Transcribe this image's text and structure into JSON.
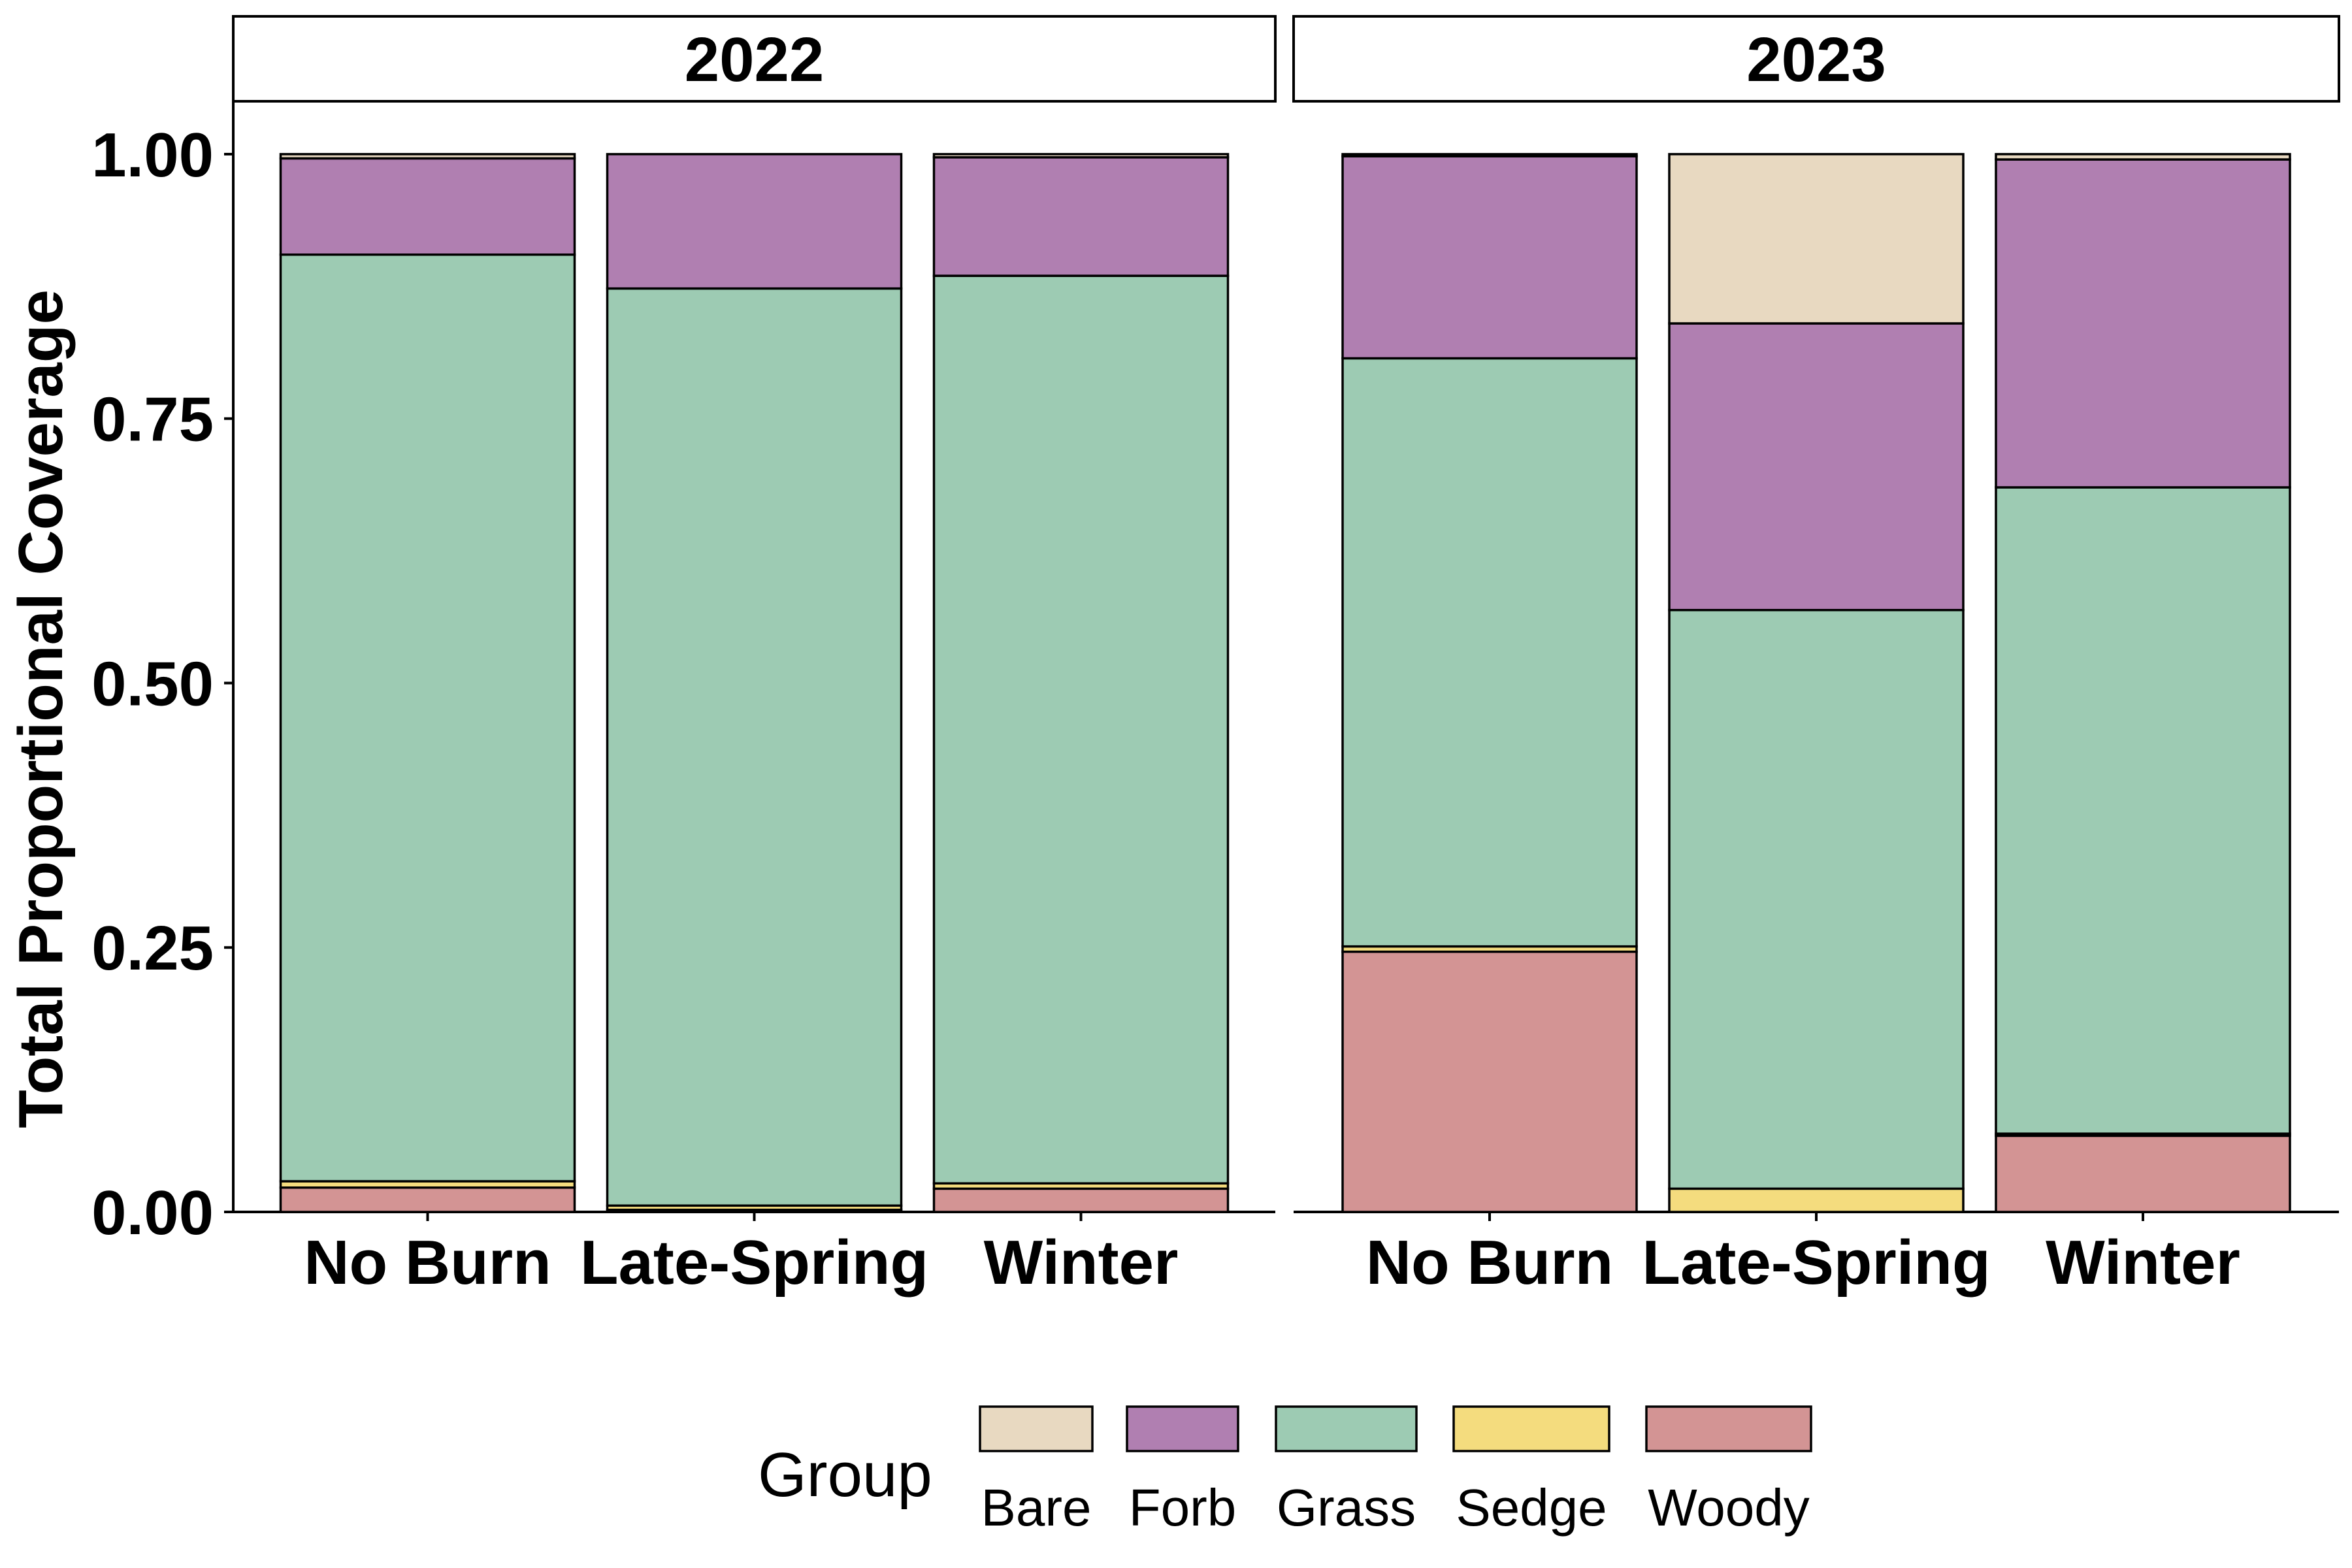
{
  "chart_data": {
    "type": "bar",
    "stacked": true,
    "ylabel": "Total Proportional Coverage",
    "xlabel": "",
    "ylim": [
      0,
      1.05
    ],
    "yticks": [
      "0.00",
      "0.25",
      "0.50",
      "0.75",
      "1.00"
    ],
    "ytick_values": [
      0,
      0.25,
      0.5,
      0.75,
      1.0
    ],
    "categories": [
      "No Burn",
      "Late-Spring",
      "Winter"
    ],
    "legend": {
      "title": "Group",
      "position": "bottom",
      "entries": [
        {
          "name": "Bare",
          "color": "#e8d9c1"
        },
        {
          "name": "Forb",
          "color": "#b07fb1"
        },
        {
          "name": "Grass",
          "color": "#9dcbb3"
        },
        {
          "name": "Sedge",
          "color": "#f4dc7e"
        },
        {
          "name": "Woody",
          "color": "#d39494"
        }
      ]
    },
    "stack_order_bottom_to_top": [
      "Woody",
      "Sedge",
      "Grass",
      "Forb",
      "Bare"
    ],
    "panels": [
      {
        "title": "2022",
        "bars": [
          {
            "category": "No Burn",
            "values": {
              "Woody": 0.023,
              "Sedge": 0.006,
              "Grass": 0.876,
              "Forb": 0.091,
              "Bare": 0.004
            }
          },
          {
            "category": "Late-Spring",
            "values": {
              "Woody": 0.002,
              "Sedge": 0.004,
              "Grass": 0.867,
              "Forb": 0.127,
              "Bare": 0.0
            }
          },
          {
            "category": "Winter",
            "values": {
              "Woody": 0.022,
              "Sedge": 0.005,
              "Grass": 0.858,
              "Forb": 0.112,
              "Bare": 0.003
            }
          }
        ]
      },
      {
        "title": "2023",
        "bars": [
          {
            "category": "No Burn",
            "values": {
              "Woody": 0.246,
              "Sedge": 0.005,
              "Grass": 0.556,
              "Forb": 0.191,
              "Bare": 0.002
            }
          },
          {
            "category": "Late-Spring",
            "values": {
              "Woody": 0.0,
              "Sedge": 0.022,
              "Grass": 0.547,
              "Forb": 0.271,
              "Bare": 0.16
            }
          },
          {
            "category": "Winter",
            "values": {
              "Woody": 0.072,
              "Sedge": 0.002,
              "Grass": 0.611,
              "Forb": 0.31,
              "Bare": 0.005
            }
          }
        ]
      }
    ]
  }
}
